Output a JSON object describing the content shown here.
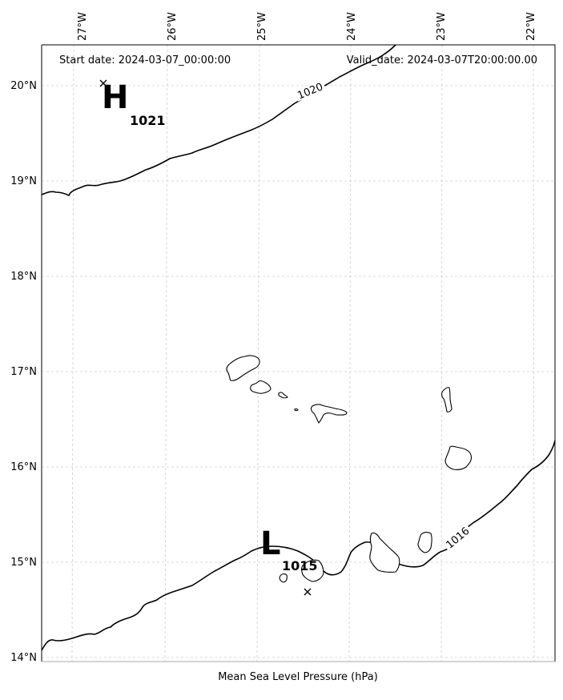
{
  "header": {
    "start_date": "Start date: 2024-03-07_00:00:00",
    "valid_date": "Valid_date: 2024-03-07T20:00:00.00"
  },
  "footer": {
    "caption": "Mean Sea Level Pressure (hPa)"
  },
  "axes": {
    "lon_labels": [
      "27°W",
      "26°W",
      "25°W",
      "24°W",
      "23°W",
      "22°W"
    ],
    "lat_labels": [
      "20°N",
      "19°N",
      "18°N",
      "17°N",
      "16°N",
      "15°N",
      "14°N"
    ]
  },
  "pressure_systems": {
    "high": {
      "symbol": "H",
      "value": "1021"
    },
    "low": {
      "symbol": "L",
      "value": "1015"
    }
  },
  "isobar_labels": {
    "north": "1020",
    "south": "1016"
  },
  "colors": {
    "line": "#000000",
    "grid": "#cccccc",
    "land": "#ffffff"
  }
}
